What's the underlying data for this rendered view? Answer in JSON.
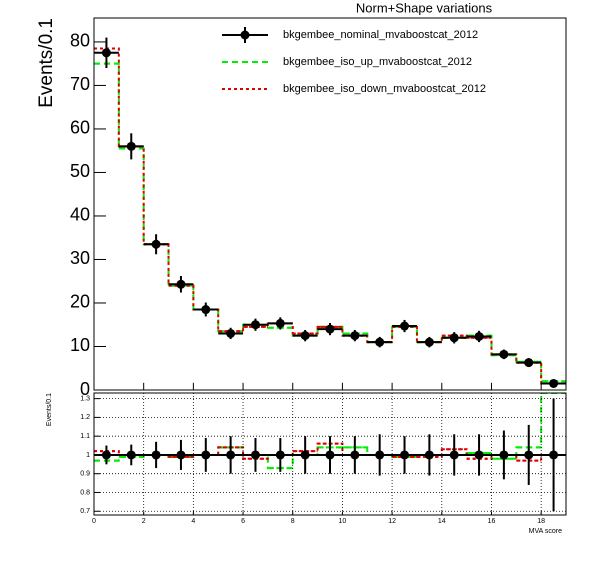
{
  "chart_data": [
    {
      "type": "histogram",
      "title": "Norm+Shape variations",
      "y_label": "Events/0.1",
      "bins": [
        0,
        1,
        2,
        3,
        4,
        5,
        6,
        7,
        8,
        9,
        10,
        11,
        12,
        13,
        14,
        15,
        16,
        17,
        18,
        19
      ],
      "xlim": [
        0,
        19
      ],
      "xticks": [
        0,
        2,
        4,
        6,
        8,
        10,
        12,
        14,
        16,
        18
      ],
      "ylim": [
        0,
        85.5
      ],
      "yticks": [
        0,
        10,
        20,
        30,
        40,
        50,
        60,
        70,
        80
      ],
      "grid": false,
      "legend": "top",
      "series": [
        {
          "name": "bkgembee_nominal_mvaboostcat_2012",
          "color": "#000000",
          "style": "points",
          "values": [
            77.5,
            56,
            33.5,
            24.3,
            18.5,
            13,
            15,
            15.3,
            12.5,
            14,
            12.5,
            11,
            14.7,
            11,
            12,
            12.3,
            8.2,
            6.3,
            1.5
          ],
          "errors": [
            3.5,
            3,
            2.3,
            1.9,
            1.6,
            1.3,
            1.4,
            1.4,
            1.3,
            1.4,
            1.3,
            1.2,
            1.4,
            1.2,
            1.3,
            1.3,
            1.1,
            1,
            0.6
          ]
        },
        {
          "name": "bkgembee_iso_up_mvaboostcat_2012",
          "color": "#00ee00",
          "style": "dashed",
          "values": [
            75,
            55.5,
            33.5,
            24,
            18.5,
            13.5,
            15,
            14.3,
            12.5,
            14.5,
            13,
            11,
            14.5,
            11,
            12,
            12.5,
            8,
            6.5,
            2
          ]
        },
        {
          "name": "bkgembee_iso_down_mvaboostcat_2012",
          "color": "#dd0000",
          "style": "dotted",
          "values": [
            78.5,
            56,
            33.5,
            24,
            18.5,
            13.5,
            14.5,
            15.3,
            13,
            14.5,
            12.5,
            11,
            14.5,
            11,
            12.5,
            12,
            8.2,
            6.3,
            1.5
          ]
        }
      ]
    },
    {
      "type": "histogram",
      "x_label": "MVA score",
      "y_label": "Events/0.1",
      "bins": [
        0,
        1,
        2,
        3,
        4,
        5,
        6,
        7,
        8,
        9,
        10,
        11,
        12,
        13,
        14,
        15,
        16,
        17,
        18,
        19
      ],
      "xlim": [
        0,
        19
      ],
      "xticks": [
        0,
        2,
        4,
        6,
        8,
        10,
        12,
        14,
        16,
        18
      ],
      "ylim": [
        0.68,
        1.33
      ],
      "yticks": [
        0.7,
        0.8,
        0.9,
        1,
        1.1,
        1.2,
        1.3
      ],
      "grid": true,
      "series": [
        {
          "color": "#000000",
          "style": "points",
          "values": [
            1,
            1,
            1,
            1,
            1,
            1,
            1,
            1,
            1,
            1,
            1,
            1,
            1,
            1,
            1,
            1,
            1,
            1,
            1
          ],
          "errors": [
            0.05,
            0.055,
            0.07,
            0.08,
            0.09,
            0.1,
            0.09,
            0.09,
            0.1,
            0.1,
            0.1,
            0.11,
            0.1,
            0.11,
            0.11,
            0.11,
            0.13,
            0.16,
            0.3
          ]
        },
        {
          "color": "#00ee00",
          "style": "dashed",
          "values": [
            0.97,
            0.99,
            1,
            0.99,
            1,
            1.04,
            1,
            0.93,
            1,
            1.04,
            1.04,
            1,
            0.99,
            1,
            1,
            1.01,
            0.98,
            1.04,
            1.33
          ]
        },
        {
          "color": "#dd0000",
          "style": "dotted",
          "values": [
            1.02,
            1,
            1,
            0.99,
            1,
            1.04,
            0.98,
            1,
            1.02,
            1.06,
            1,
            1,
            0.99,
            0.99,
            1.03,
            0.98,
            1,
            0.97,
            1
          ]
        }
      ]
    }
  ]
}
